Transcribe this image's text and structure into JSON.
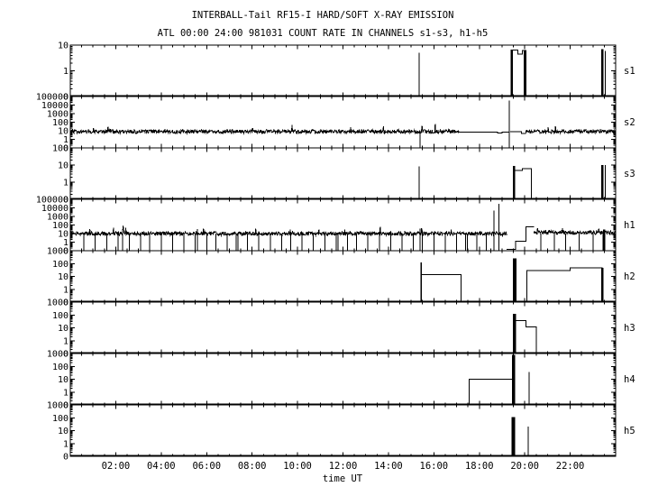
{
  "chart_data": {
    "type": "line",
    "title": "INTERBALL-Tail RF15-I HARD/SOFT X-RAY EMISSION",
    "subtitle": "ATL 00:00 24:00 981031  COUNT RATE IN CHANNELS s1-s3, h1-h5",
    "xlabel": "time UT",
    "x_range_hours": [
      0,
      24
    ],
    "x_major_tick_hours": 2,
    "x_minor_tick_hours": 0.5,
    "x_tick_labels": [
      "02:00",
      "04:00",
      "06:00",
      "08:00",
      "10:00",
      "12:00",
      "14:00",
      "16:00",
      "18:00",
      "20:00",
      "22:00"
    ],
    "grid": false,
    "axis_color": "#000000",
    "background_color": "#ffffff",
    "y_scale": "log",
    "panels": [
      {
        "label": "s1",
        "top_value": 10,
        "decades": 2,
        "ytick_labels": [
          "10",
          "1",
          "0"
        ],
        "baseline": true,
        "step_groups": [
          [
            [
              19.4,
              19.7,
              6.3
            ],
            [
              19.7,
              19.9,
              4.5
            ],
            [
              19.9,
              20.05,
              6.2
            ]
          ]
        ],
        "spikes": [
          [
            15.35,
            5,
            1
          ],
          [
            19.43,
            6.3,
            2.5
          ],
          [
            20.0,
            6.2,
            2.5
          ],
          [
            23.42,
            7,
            2.5
          ],
          [
            23.55,
            6,
            1
          ]
        ],
        "noise": [],
        "lines": [],
        "drops": [],
        "drop_base": null
      },
      {
        "label": "s2",
        "top_value": 100000,
        "decades": 6,
        "ytick_labels": [
          "100000",
          "10000",
          "1000",
          "100",
          "10",
          "1",
          "0"
        ],
        "baseline": false,
        "step_groups": [],
        "spikes": [
          [
            15.4,
            8,
            1
          ],
          [
            19.32,
            32000,
            1
          ]
        ],
        "noise": [
          [
            0,
            17.1,
            8
          ],
          [
            20.05,
            24,
            8
          ]
        ],
        "lines": [
          [
            [
              17.1,
              7
            ],
            [
              18.8,
              5.5
            ],
            [
              19.0,
              7
            ],
            [
              19.32,
              7
            ]
          ],
          [
            [
              19.35,
              8
            ],
            [
              19.85,
              5
            ],
            [
              20.05,
              5
            ]
          ]
        ],
        "drops": [],
        "drop_base": null
      },
      {
        "label": "s3",
        "top_value": 100,
        "decades": 3,
        "ytick_labels": [
          "100",
          "10",
          "1",
          "0"
        ],
        "baseline": true,
        "step_groups": [
          [
            [
              19.5,
              19.9,
              4.8
            ],
            [
              19.9,
              20.3,
              6
            ]
          ]
        ],
        "spikes": [
          [
            15.35,
            8.5,
            1
          ],
          [
            19.52,
            9,
            2.5
          ],
          [
            23.42,
            10,
            2.5
          ],
          [
            23.55,
            10,
            1
          ]
        ],
        "noise": [],
        "lines": [],
        "drops": [],
        "drop_base": null
      },
      {
        "label": "h1",
        "top_value": 100000,
        "decades": 6,
        "ytick_labels": [
          "100000",
          "10000",
          "1000",
          "100",
          "10",
          "1",
          "0"
        ],
        "baseline": false,
        "step_groups": [],
        "spikes": [
          [
            2.3,
            30,
            1
          ],
          [
            5.6,
            35,
            1
          ],
          [
            15.4,
            40,
            1
          ],
          [
            18.65,
            5000,
            1
          ],
          [
            18.87,
            30000,
            1
          ],
          [
            23.5,
            30,
            2.5
          ]
        ],
        "noise": [
          [
            0,
            19.2,
            10
          ],
          [
            20.4,
            24,
            13
          ]
        ],
        "lines": [
          [
            [
              19.2,
              0.15
            ],
            [
              19.6,
              1.3
            ],
            [
              20.05,
              60
            ],
            [
              20.4,
              60
            ]
          ]
        ],
        "drops": [
          0.6,
          1.1,
          1.6,
          2.1,
          2.6,
          3.1,
          3.5,
          4.0,
          4.5,
          5.0,
          5.5,
          6.0,
          6.4,
          6.9,
          7.3,
          7.38,
          7.8,
          8.3,
          8.8,
          9.3,
          9.7,
          10.2,
          10.7,
          11.2,
          11.7,
          11.78,
          12.2,
          12.6,
          13.1,
          13.6,
          14.1,
          14.6,
          15.1,
          15.5,
          16.0,
          16.5,
          17.0,
          17.4,
          17.48,
          17.9,
          18.3,
          20.7,
          21.3,
          21.8,
          22.4,
          23.0,
          23.45
        ],
        "drop_base": 10
      },
      {
        "label": "h2",
        "top_value": 1000,
        "decades": 4,
        "ytick_labels": [
          "1000",
          "100",
          "10",
          "1",
          "0"
        ],
        "baseline": true,
        "step_groups": [
          [
            [
              15.45,
              17.2,
              14
            ]
          ],
          [
            [
              20.1,
              22.0,
              28
            ],
            [
              22.0,
              23.4,
              45
            ]
          ]
        ],
        "spikes": [
          [
            15.45,
            120,
            1.5
          ],
          [
            19.55,
            250,
            4
          ],
          [
            23.42,
            45,
            2.5
          ]
        ],
        "noise": [],
        "lines": [],
        "drops": [],
        "drop_base": null
      },
      {
        "label": "h3",
        "top_value": 1000,
        "decades": 4,
        "ytick_labels": [
          "1000",
          "100",
          "10",
          "1",
          "0"
        ],
        "baseline": true,
        "step_groups": [
          [
            [
              19.6,
              20.05,
              35
            ],
            [
              20.05,
              20.5,
              12
            ]
          ]
        ],
        "spikes": [
          [
            19.55,
            120,
            3.5
          ]
        ],
        "noise": [],
        "lines": [],
        "drops": [],
        "drop_base": null
      },
      {
        "label": "h4",
        "top_value": 1000,
        "decades": 4,
        "ytick_labels": [
          "1000",
          "100",
          "10",
          "1",
          "0"
        ],
        "baseline": true,
        "step_groups": [
          [
            [
              17.55,
              19.45,
              10
            ]
          ]
        ],
        "spikes": [
          [
            19.5,
            800,
            3.5
          ],
          [
            20.2,
            35,
            1
          ]
        ],
        "noise": [],
        "lines": [],
        "drops": [],
        "drop_base": null
      },
      {
        "label": "h5",
        "top_value": 1000,
        "decades": 4,
        "ytick_labels": [
          "1000",
          "100",
          "10",
          "1",
          "0"
        ],
        "baseline": true,
        "step_groups": [],
        "spikes": [
          [
            19.5,
            110,
            4
          ],
          [
            20.15,
            20,
            1
          ]
        ],
        "noise": [],
        "lines": [],
        "drops": [],
        "drop_base": null
      }
    ]
  }
}
